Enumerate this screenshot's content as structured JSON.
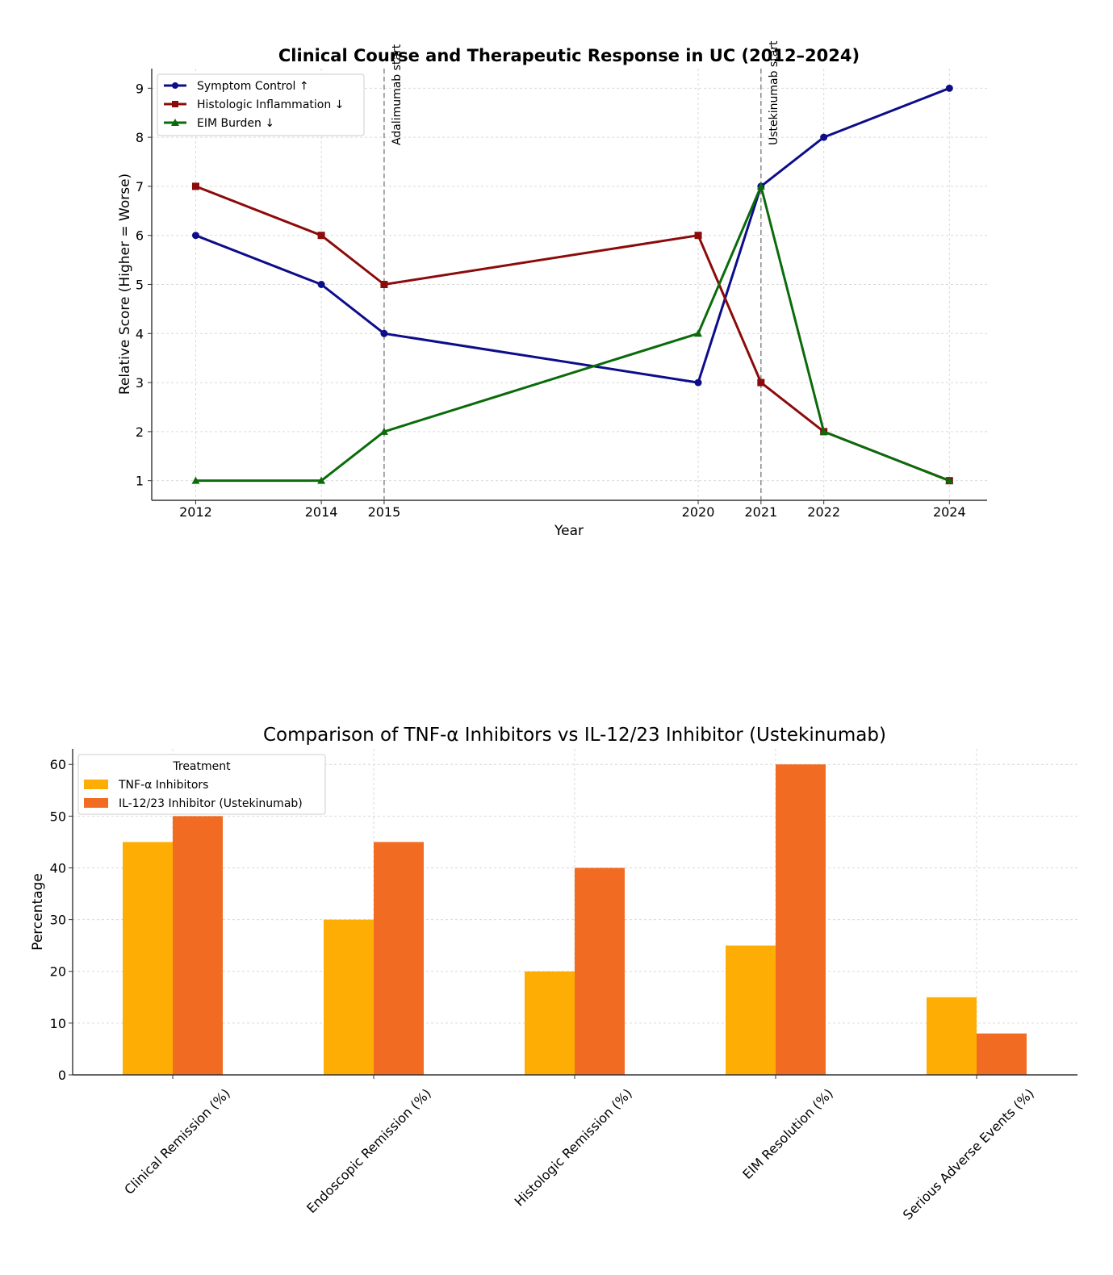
{
  "charts": [
    {
      "type": "line",
      "title": "Clinical Course and Therapeutic Response in UC (2012–2024)",
      "xlabel": "Year",
      "ylabel": "Relative Score (Higher = Worse)",
      "x": [
        2012,
        2014,
        2015,
        2020,
        2021,
        2022,
        2024
      ],
      "xlim": [
        2011.3,
        2024.6
      ],
      "ylim": [
        0.6,
        9.4
      ],
      "yticks": [
        1,
        2,
        3,
        4,
        5,
        6,
        7,
        8,
        9
      ],
      "grid": true,
      "legend_position": "top-left",
      "series": [
        {
          "name": "Symptom Control ↑",
          "color": "#0d0d8a",
          "marker": "circle",
          "values": [
            6,
            5,
            4,
            3,
            7,
            8,
            9
          ]
        },
        {
          "name": "Histologic Inflammation ↓",
          "color": "#8b0b0b",
          "marker": "square",
          "values": [
            7,
            6,
            5,
            6,
            3,
            2,
            1
          ]
        },
        {
          "name": "EIM Burden ↓",
          "color": "#0b6b0b",
          "marker": "triangle",
          "values": [
            1,
            1,
            2,
            4,
            7,
            2,
            1
          ]
        }
      ],
      "annotations": [
        {
          "x": 2015,
          "text": "Adalimumab start"
        },
        {
          "x": 2021,
          "text": "Ustekinumab start"
        }
      ]
    },
    {
      "type": "bar",
      "title": "Comparison of TNF-α Inhibitors vs IL-12/23 Inhibitor (Ustekinumab)",
      "xlabel": "",
      "ylabel": "Percentage",
      "categories": [
        "Clinical Remission (%)",
        "Endoscopic Remission (%)",
        "Histologic Remission (%)",
        "EIM Resolution (%)",
        "Serious Adverse Events (%)"
      ],
      "ylim": [
        0,
        63
      ],
      "yticks": [
        0,
        10,
        20,
        30,
        40,
        50,
        60
      ],
      "grid": true,
      "legend_title": "Treatment",
      "legend_position": "top-left",
      "series": [
        {
          "name": "TNF-α Inhibitors",
          "color": "#fdad04",
          "values": [
            45,
            30,
            20,
            25,
            15
          ]
        },
        {
          "name": "IL-12/23 Inhibitor (Ustekinumab)",
          "color": "#f26b22",
          "values": [
            50,
            45,
            40,
            60,
            8
          ]
        }
      ]
    }
  ]
}
